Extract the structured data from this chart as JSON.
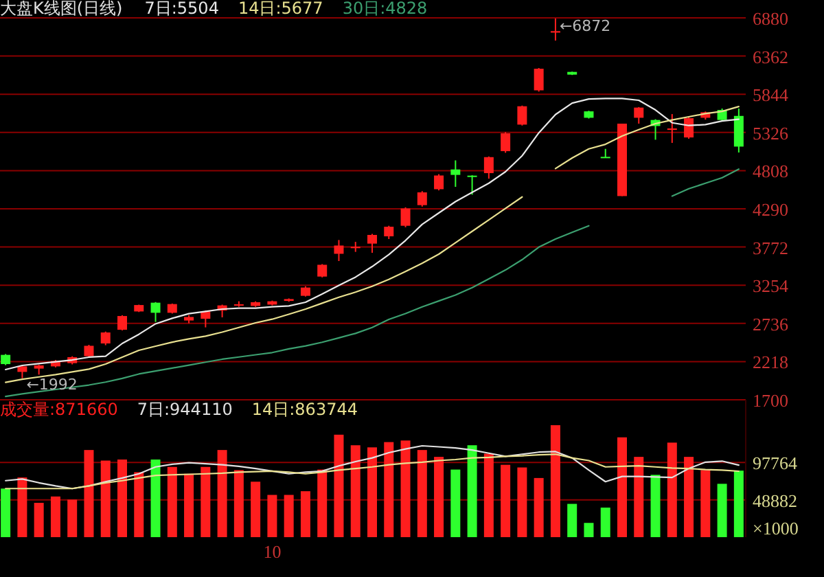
{
  "chart_data": [
    {
      "type": "candlestick",
      "title": "大盘K线图(日线)",
      "categories": [
        null,
        null,
        null,
        null,
        null,
        null,
        null,
        null,
        null,
        null,
        null,
        null,
        null,
        null,
        null,
        null,
        null,
        null,
        null,
        null,
        null,
        null,
        null,
        null,
        null,
        null,
        null,
        null,
        null,
        null,
        null,
        null,
        null,
        null,
        null,
        null,
        null,
        null,
        null,
        null,
        null,
        null,
        null,
        null,
        null
      ],
      "ohlc": [
        [
          2309,
          2320,
          2170,
          2184
        ],
        [
          2078,
          2165,
          1992,
          2153
        ],
        [
          2123,
          2175,
          2041,
          2166
        ],
        [
          2153,
          2240,
          2140,
          2227
        ],
        [
          2197,
          2290,
          2180,
          2278
        ],
        [
          2291,
          2445,
          2280,
          2432
        ],
        [
          2464,
          2625,
          2440,
          2613
        ],
        [
          2650,
          2845,
          2640,
          2836
        ],
        [
          2898,
          2990,
          2890,
          2985
        ],
        [
          3017,
          3025,
          2756,
          2880
        ],
        [
          2880,
          3005,
          2870,
          2998
        ],
        [
          2775,
          2849,
          2738,
          2823
        ],
        [
          2799,
          2910,
          2682,
          2898
        ],
        [
          2911,
          2990,
          2818,
          2980
        ],
        [
          2985,
          3036,
          2961,
          2995
        ],
        [
          2973,
          3035,
          2960,
          3023
        ],
        [
          2991,
          3045,
          2980,
          3036
        ],
        [
          3041,
          3075,
          3030,
          3066
        ],
        [
          3110,
          3240,
          3100,
          3222
        ],
        [
          3371,
          3540,
          3360,
          3531
        ],
        [
          3680,
          3867,
          3582,
          3792
        ],
        [
          3760,
          3842,
          3706,
          3775
        ],
        [
          3818,
          3950,
          3693,
          3936
        ],
        [
          3917,
          4060,
          3880,
          4047
        ],
        [
          4060,
          4310,
          4040,
          4295
        ],
        [
          4340,
          4530,
          4320,
          4513
        ],
        [
          4556,
          4760,
          4540,
          4742
        ],
        [
          4824,
          4947,
          4588,
          4750
        ],
        [
          4740,
          4745,
          4482,
          4730
        ],
        [
          4774,
          5000,
          4699,
          4991
        ],
        [
          5072,
          5330,
          5050,
          5314
        ],
        [
          5432,
          5690,
          5420,
          5681
        ],
        [
          5897,
          6200,
          5880,
          6190
        ],
        [
          6680,
          6872,
          6572,
          6700
        ],
        [
          6147,
          6150,
          6105,
          6110
        ],
        [
          5612,
          5620,
          5515,
          5525
        ],
        [
          4995,
          5103,
          4985,
          4991
        ],
        [
          4463,
          5445,
          4463,
          5445
        ],
        [
          5525,
          5670,
          5445,
          5663
        ],
        [
          5495,
          5505,
          5227,
          5413
        ],
        [
          5360,
          5575,
          5184,
          5380
        ],
        [
          5258,
          5530,
          5240,
          5519
        ],
        [
          5525,
          5610,
          5500,
          5600
        ],
        [
          5631,
          5650,
          5480,
          5495
        ],
        [
          5550,
          5650,
          5054,
          5134
        ]
      ],
      "colors": [
        "#2eff2e",
        "#ff1e1e",
        "#ff1e1e",
        "#ff1e1e",
        "#ff1e1e",
        "#ff1e1e",
        "#ff1e1e",
        "#ff1e1e",
        "#ff1e1e",
        "#2eff2e",
        "#ff1e1e",
        "#ff1e1e",
        "#ff1e1e",
        "#ff1e1e",
        "#ff1e1e",
        "#ff1e1e",
        "#ff1e1e",
        "#ff1e1e",
        "#ff1e1e",
        "#ff1e1e",
        "#ff1e1e",
        "#ff1e1e",
        "#ff1e1e",
        "#ff1e1e",
        "#ff1e1e",
        "#ff1e1e",
        "#ff1e1e",
        "#2eff2e",
        "#2eff2e",
        "#ff1e1e",
        "#ff1e1e",
        "#ff1e1e",
        "#ff1e1e",
        "#ff1e1e",
        "#2eff2e",
        "#2eff2e",
        "#2eff2e",
        "#ff1e1e",
        "#ff1e1e",
        "#2eff2e",
        "#ff1e1e",
        "#ff1e1e",
        "#ff1e1e",
        "#2eff2e",
        "#2eff2e"
      ],
      "series": [
        {
          "name": "7日:5504",
          "type": "line",
          "color": "#e8e8e8",
          "values": [
            2110,
            2166,
            2190,
            2216,
            2240,
            2278,
            2290,
            2464,
            2588,
            2730,
            2805,
            2868,
            2898,
            2930,
            2942,
            2942,
            2961,
            2973,
            3023,
            3134,
            3252,
            3364,
            3507,
            3669,
            3861,
            4079,
            4234,
            4388,
            4513,
            4637,
            4793,
            5010,
            5320,
            5569,
            5724,
            5780,
            5786,
            5786,
            5762,
            5631,
            5457,
            5420,
            5432,
            5482,
            5504
          ]
        },
        {
          "name": "14日:5677",
          "type": "line",
          "color": "#e8e090",
          "values": [
            1937,
            1979,
            2010,
            2041,
            2078,
            2116,
            2184,
            2278,
            2371,
            2427,
            2482,
            2525,
            2563,
            2618,
            2681,
            2743,
            2793,
            2860,
            2930,
            3010,
            3090,
            3160,
            3240,
            3333,
            3439,
            3551,
            3675,
            3830,
            3985,
            4140,
            4295,
            4451,
            null,
            4836,
            4979,
            5103,
            5165,
            5277,
            5364,
            5445,
            5495,
            5538,
            5581,
            5612,
            5677
          ]
        },
        {
          "name": "30日:4828",
          "type": "line",
          "color": "#3ca070",
          "values": [
            1745,
            1780,
            1810,
            1840,
            1870,
            1900,
            1940,
            1990,
            2050,
            2090,
            2130,
            2170,
            2210,
            2250,
            2280,
            2310,
            2340,
            2390,
            2430,
            2480,
            2540,
            2600,
            2680,
            2790,
            2870,
            2960,
            3040,
            3120,
            3220,
            3340,
            3460,
            3600,
            3770,
            3880,
            3970,
            4060,
            null,
            null,
            null,
            null,
            4463,
            4563,
            4637,
            4712,
            4828
          ]
        }
      ],
      "ylim": [
        1700,
        6880
      ],
      "yticks": [
        1700,
        2218,
        2736,
        3254,
        3772,
        4290,
        4808,
        5326,
        5844,
        6362,
        6880
      ],
      "grid": "y",
      "legend": "top left",
      "tick_labels": "y",
      "annotations": [
        "←6872",
        "←1992"
      ]
    },
    {
      "type": "bar",
      "categories": [
        null,
        null,
        null,
        null,
        null,
        null,
        null,
        null,
        null,
        null,
        null,
        null,
        null,
        null,
        null,
        null,
        "10",
        null,
        null,
        null,
        null,
        null,
        null,
        null,
        null,
        null,
        null,
        null,
        null,
        null,
        null,
        null,
        null,
        null,
        null,
        null,
        null,
        null,
        null,
        null,
        null,
        null,
        null,
        null,
        null
      ],
      "series": [
        {
          "name": "成交量:871660",
          "type": "bar",
          "color": "#ff1e1e",
          "colors": [
            "#2eff2e",
            "#ff1e1e",
            "#ff1e1e",
            "#ff1e1e",
            "#ff1e1e",
            "#ff1e1e",
            "#ff1e1e",
            "#ff1e1e",
            "#ff1e1e",
            "#2eff2e",
            "#ff1e1e",
            "#ff1e1e",
            "#ff1e1e",
            "#ff1e1e",
            "#ff1e1e",
            "#ff1e1e",
            "#ff1e1e",
            "#ff1e1e",
            "#ff1e1e",
            "#ff1e1e",
            "#ff1e1e",
            "#ff1e1e",
            "#ff1e1e",
            "#ff1e1e",
            "#ff1e1e",
            "#ff1e1e",
            "#ff1e1e",
            "#2eff2e",
            "#2eff2e",
            "#ff1e1e",
            "#ff1e1e",
            "#ff1e1e",
            "#ff1e1e",
            "#ff1e1e",
            "#2eff2e",
            "#2eff2e",
            "#2eff2e",
            "#ff1e1e",
            "#ff1e1e",
            "#2eff2e",
            "#ff1e1e",
            "#ff1e1e",
            "#ff1e1e",
            "#2eff2e",
            "#2eff2e"
          ],
          "values": [
            63660,
            78200,
            44980,
            53280,
            49130,
            114180,
            100340,
            101720,
            85120,
            101720,
            92040,
            83040,
            92040,
            114180,
            87880,
            72660,
            55360,
            55360,
            60200,
            88580,
            134250,
            120410,
            117640,
            124560,
            126640,
            114180,
            105180,
            88580,
            120410,
            109340,
            94800,
            91340,
            77500,
            146700,
            43600,
            18680,
            38750,
            130790,
            105180,
            81660,
            123870,
            105180,
            87880,
            69890,
            87166
          ]
        },
        {
          "name": "7日:944110",
          "type": "line",
          "color": "#e0e0e0",
          "values": [
            74040,
            76120,
            71280,
            67120,
            63660,
            67120,
            72660,
            77500,
            83040,
            92040,
            95500,
            97570,
            96190,
            94800,
            92730,
            89960,
            86500,
            83040,
            85120,
            86500,
            93420,
            98960,
            103800,
            110720,
            115560,
            119720,
            118330,
            116950,
            114180,
            110030,
            105880,
            108640,
            111410,
            112100,
            103800,
            87880,
            72660,
            79580,
            79580,
            78890,
            78200,
            89960,
            98260,
            99650,
            94411
          ]
        },
        {
          "name": "14日:863744",
          "type": "line",
          "color": "#e8e090",
          "values": [
            63660,
            63660,
            63660,
            63660,
            63660,
            67120,
            71280,
            74040,
            77500,
            80960,
            81660,
            82350,
            83040,
            83730,
            85120,
            85810,
            86500,
            85120,
            83040,
            85120,
            87880,
            89960,
            92040,
            94800,
            96880,
            98260,
            100340,
            101720,
            103800,
            104490,
            105880,
            106570,
            107950,
            108640,
            103800,
            100340,
            92040,
            92730,
            93420,
            92040,
            90650,
            89960,
            88580,
            87880,
            86374
          ]
        }
      ],
      "ylim": [
        0,
        180000
      ],
      "yticks": [
        48882,
        97764
      ],
      "ylabel": "×1000",
      "grid": "y",
      "legend": "top left"
    }
  ]
}
